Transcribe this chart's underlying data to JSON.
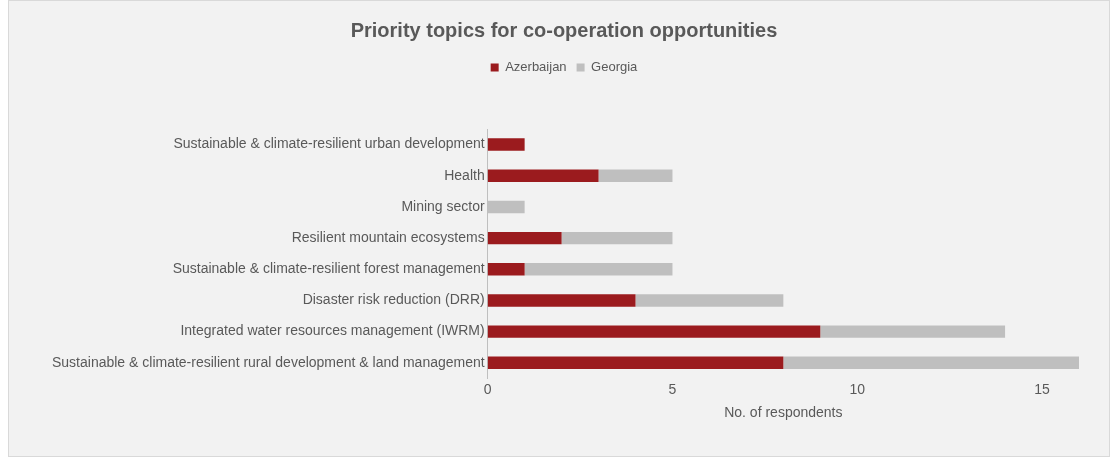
{
  "chart_data": {
    "type": "bar",
    "orientation": "horizontal",
    "stacked": true,
    "title": "Priority topics for co-operation opportunities",
    "xlabel": "No. of respondents",
    "categories": [
      "Sustainable & climate-resilient urban development",
      "Health",
      "Mining sector",
      "Resilient mountain ecosystems",
      "Sustainable & climate-resilient forest management",
      "Disaster risk reduction (DRR)",
      "Integrated water resources management (IWRM)",
      "Sustainable & climate-resilient rural development & land management"
    ],
    "series": [
      {
        "name": "Azerbaijan",
        "color": "#9b1b1e",
        "values": [
          1,
          3,
          0,
          2,
          1,
          4,
          9,
          8
        ]
      },
      {
        "name": "Georgia",
        "color": "#bfbfbf",
        "values": [
          0,
          2,
          1,
          3,
          4,
          4,
          5,
          8
        ]
      }
    ],
    "xlim": [
      0,
      16
    ],
    "xticks": [
      0,
      5,
      10,
      15
    ],
    "grid": false,
    "legend": "top"
  }
}
